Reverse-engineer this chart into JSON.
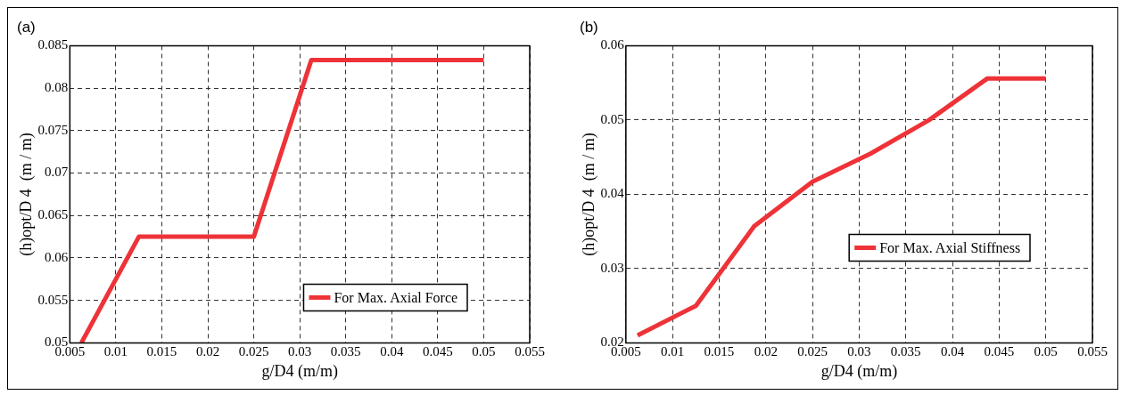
{
  "chart_data": [
    {
      "type": "line",
      "title": "(a)",
      "xlabel": "g/D4 (m/m)",
      "ylabel": "(h)opt/D 4  (m / m)",
      "x": [
        0.00625,
        0.0125,
        0.025,
        0.03125,
        0.05
      ],
      "series": [
        {
          "name": "For Max. Axial Force",
          "color": "#ee3338",
          "values": [
            0.05,
            0.0625,
            0.0625,
            0.0833,
            0.0833
          ]
        }
      ],
      "xlim": [
        0.005,
        0.055
      ],
      "xticks": [
        0.005,
        0.01,
        0.015,
        0.02,
        0.025,
        0.03,
        0.035,
        0.04,
        0.045,
        0.05,
        0.055
      ],
      "ylim": [
        0.05,
        0.085
      ],
      "yticks": [
        0.05,
        0.055,
        0.06,
        0.065,
        0.07,
        0.075,
        0.08,
        0.085
      ],
      "grid": true,
      "legend": "bottom right",
      "marker": "none",
      "line_style": "solid"
    },
    {
      "type": "line",
      "title": "(b)",
      "xlabel": "g/D4 (m/m)",
      "ylabel": "(h)opt/D 4  (m / m)",
      "x": [
        0.00625,
        0.0125,
        0.01875,
        0.025,
        0.03125,
        0.0375,
        0.04375,
        0.05
      ],
      "series": [
        {
          "name": "For Max. Axial Stiffness",
          "color": "#ee3338",
          "values": [
            0.021,
            0.025,
            0.0357,
            0.0417,
            0.0455,
            0.05,
            0.0556,
            0.0556
          ]
        }
      ],
      "xlim": [
        0.005,
        0.055
      ],
      "xticks": [
        0.005,
        0.01,
        0.015,
        0.02,
        0.025,
        0.03,
        0.035,
        0.04,
        0.045,
        0.05,
        0.055
      ],
      "ylim": [
        0.02,
        0.06
      ],
      "yticks": [
        0.02,
        0.03,
        0.04,
        0.05,
        0.06
      ],
      "grid": true,
      "legend": "right",
      "marker": "none",
      "line_style": "solid"
    }
  ]
}
